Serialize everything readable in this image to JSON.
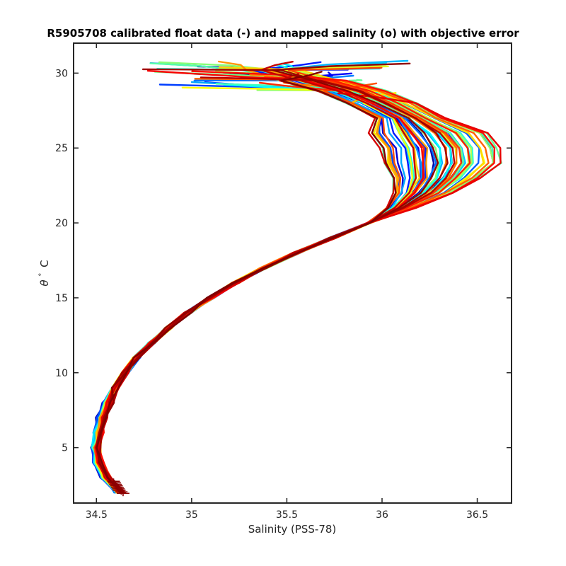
{
  "chart_data": {
    "type": "line",
    "title": "R5905708 calibrated float data (-) and mapped salinity (o) with objective error",
    "xlabel": "Salinity (PSS-78)",
    "ylabel_symbol": "θ",
    "ylabel_unit": "C",
    "xlim": [
      34.38,
      36.68
    ],
    "ylim": [
      1.3,
      32
    ],
    "x_ticks": [
      34.5,
      35,
      35.5,
      36,
      36.5
    ],
    "x_tick_labels": [
      "34.5",
      "35",
      "35.5",
      "36",
      "36.5"
    ],
    "y_ticks": [
      5,
      10,
      15,
      20,
      25,
      30
    ],
    "y_tick_labels": [
      "5",
      "10",
      "15",
      "20",
      "25",
      "30"
    ],
    "grid": false,
    "colormap": "jet",
    "colormap_stops": [
      "#00007f",
      "#0000ff",
      "#007fff",
      "#00ffff",
      "#7fff7f",
      "#ffff00",
      "#ff7f00",
      "#ff0000",
      "#7f0000"
    ],
    "profile_count": 60,
    "base_profile": {
      "theta": [
        2.0,
        3.0,
        4.0,
        5.0,
        6.0,
        7.0,
        8.0,
        9.0,
        10.0,
        11.0,
        12.0,
        13.0,
        14.0,
        15.0,
        16.0,
        17.0,
        18.0,
        19.0,
        20.0,
        21.0,
        22.0,
        23.0,
        24.0,
        25.0,
        26.0,
        27.0,
        28.0,
        28.8,
        29.5,
        30.2
      ],
      "salinity": [
        34.62,
        34.55,
        34.51,
        34.5,
        34.51,
        34.53,
        34.56,
        34.6,
        34.65,
        34.71,
        34.79,
        34.88,
        34.98,
        35.1,
        35.23,
        35.38,
        35.55,
        35.74,
        35.93,
        36.1,
        36.22,
        36.29,
        36.32,
        36.31,
        36.25,
        36.15,
        36.0,
        35.85,
        35.65,
        35.45
      ]
    },
    "spread": {
      "deep_mid_sigma": 0.01,
      "upper_max_delta": 0.32,
      "surface_fan_min_salinity": 34.72,
      "surface_fan_max_salinity": 36.15
    },
    "mapped_markers": {
      "theta": [
        1.95,
        2.05,
        2.15,
        2.25,
        2.35,
        2.45,
        2.55,
        2.65,
        2.75
      ],
      "salinity": [
        34.64,
        34.63,
        34.62,
        34.615,
        34.61,
        34.605,
        34.6,
        34.595,
        34.59
      ]
    }
  }
}
